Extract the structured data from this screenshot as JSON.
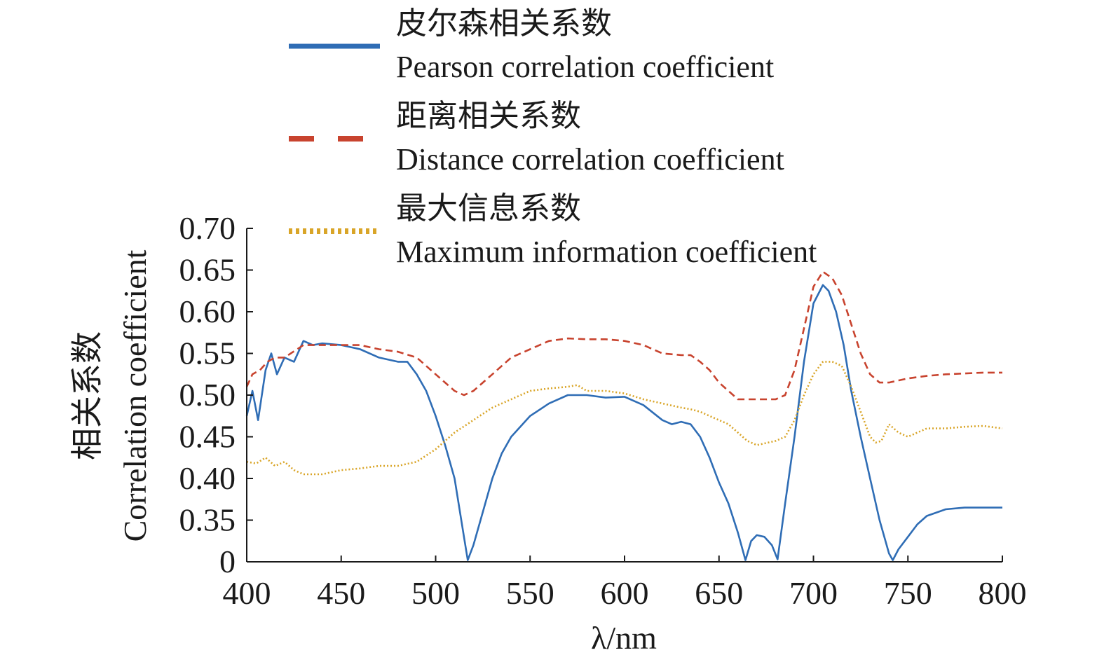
{
  "chart_data": {
    "type": "line",
    "title": "",
    "xlabel": "λ/nm",
    "ylabel_zh": "相关系数",
    "ylabel_en": "Correlation coefficient",
    "xlim": [
      400,
      800
    ],
    "x_ticks": [
      400,
      450,
      500,
      550,
      600,
      650,
      700,
      750,
      800
    ],
    "x_tick_labels": [
      "400",
      "450",
      "500",
      "550",
      "600",
      "650",
      "700",
      "750",
      "800"
    ],
    "y_ticks": [
      0.3,
      0.35,
      0.4,
      0.45,
      0.5,
      0.55,
      0.6,
      0.65,
      0.7
    ],
    "y_tick_labels": [
      "0",
      "0.35",
      "0.40",
      "0.45",
      "0.50",
      "0.55",
      "0.60",
      "0.65",
      "0.70"
    ],
    "ylim": [
      0.3,
      0.7
    ],
    "y_axis_break": "the lowest tick is printed as 0 (axis break below 0.35)",
    "grid": false,
    "legend_position": "top",
    "series": [
      {
        "name_zh": "皮尔森相关系数",
        "name_en": "Pearson correlation coefficient",
        "color": "#2f6db5",
        "style": "solid",
        "x": [
          400,
          403,
          406,
          410,
          413,
          416,
          420,
          425,
          430,
          435,
          440,
          450,
          460,
          470,
          480,
          485,
          490,
          495,
          500,
          505,
          510,
          515,
          517,
          520,
          525,
          530,
          535,
          540,
          550,
          560,
          570,
          580,
          590,
          600,
          610,
          620,
          625,
          630,
          635,
          640,
          645,
          650,
          655,
          660,
          664,
          667,
          670,
          674,
          678,
          681,
          685,
          690,
          695,
          700,
          705,
          708,
          712,
          716,
          720,
          725,
          730,
          735,
          740,
          742,
          745,
          750,
          755,
          760,
          770,
          780,
          790,
          800
        ],
        "y": [
          0.475,
          0.505,
          0.47,
          0.53,
          0.55,
          0.525,
          0.545,
          0.54,
          0.565,
          0.56,
          0.562,
          0.56,
          0.555,
          0.545,
          0.54,
          0.54,
          0.525,
          0.505,
          0.475,
          0.44,
          0.4,
          0.33,
          0.302,
          0.32,
          0.36,
          0.4,
          0.43,
          0.45,
          0.475,
          0.49,
          0.5,
          0.5,
          0.497,
          0.498,
          0.488,
          0.47,
          0.465,
          0.468,
          0.465,
          0.45,
          0.425,
          0.395,
          0.37,
          0.335,
          0.302,
          0.325,
          0.332,
          0.33,
          0.32,
          0.303,
          0.37,
          0.45,
          0.54,
          0.61,
          0.632,
          0.625,
          0.6,
          0.56,
          0.505,
          0.45,
          0.4,
          0.35,
          0.31,
          0.302,
          0.315,
          0.33,
          0.345,
          0.355,
          0.363,
          0.365,
          0.365,
          0.365
        ]
      },
      {
        "name_zh": "距离相关系数",
        "name_en": "Distance correlation coefficient",
        "color": "#c8432e",
        "style": "dashed",
        "x": [
          400,
          403,
          407,
          411,
          415,
          420,
          430,
          440,
          450,
          460,
          470,
          480,
          490,
          500,
          510,
          515,
          520,
          525,
          530,
          540,
          550,
          560,
          570,
          580,
          590,
          600,
          610,
          620,
          630,
          635,
          640,
          645,
          650,
          655,
          660,
          670,
          680,
          685,
          690,
          695,
          700,
          705,
          710,
          715,
          720,
          725,
          730,
          735,
          740,
          750,
          760,
          770,
          780,
          790,
          800
        ],
        "y": [
          0.51,
          0.525,
          0.53,
          0.54,
          0.545,
          0.545,
          0.56,
          0.56,
          0.56,
          0.56,
          0.555,
          0.552,
          0.545,
          0.525,
          0.505,
          0.5,
          0.505,
          0.515,
          0.525,
          0.545,
          0.555,
          0.565,
          0.568,
          0.567,
          0.567,
          0.565,
          0.56,
          0.55,
          0.548,
          0.548,
          0.54,
          0.53,
          0.515,
          0.505,
          0.495,
          0.495,
          0.495,
          0.5,
          0.53,
          0.58,
          0.63,
          0.648,
          0.64,
          0.62,
          0.585,
          0.55,
          0.525,
          0.515,
          0.515,
          0.52,
          0.523,
          0.525,
          0.526,
          0.527,
          0.527
        ]
      },
      {
        "name_zh": "最大信息系数",
        "name_en": "Maximum information coefficient",
        "color": "#d9a528",
        "style": "dotted",
        "x": [
          400,
          405,
          410,
          415,
          420,
          425,
          430,
          440,
          450,
          460,
          470,
          480,
          490,
          500,
          510,
          520,
          530,
          540,
          550,
          560,
          570,
          575,
          580,
          590,
          600,
          610,
          620,
          630,
          635,
          640,
          645,
          650,
          655,
          660,
          665,
          670,
          680,
          685,
          690,
          695,
          700,
          705,
          710,
          715,
          720,
          725,
          730,
          733,
          736,
          740,
          745,
          750,
          755,
          760,
          770,
          780,
          790,
          800
        ],
        "y": [
          0.42,
          0.418,
          0.425,
          0.415,
          0.42,
          0.41,
          0.405,
          0.405,
          0.41,
          0.412,
          0.415,
          0.415,
          0.42,
          0.435,
          0.455,
          0.47,
          0.485,
          0.495,
          0.505,
          0.508,
          0.51,
          0.512,
          0.505,
          0.505,
          0.502,
          0.495,
          0.49,
          0.485,
          0.483,
          0.48,
          0.475,
          0.47,
          0.465,
          0.455,
          0.445,
          0.44,
          0.445,
          0.45,
          0.47,
          0.5,
          0.525,
          0.54,
          0.54,
          0.535,
          0.51,
          0.48,
          0.45,
          0.443,
          0.445,
          0.465,
          0.455,
          0.45,
          0.455,
          0.46,
          0.46,
          0.462,
          0.463,
          0.46
        ]
      }
    ]
  }
}
